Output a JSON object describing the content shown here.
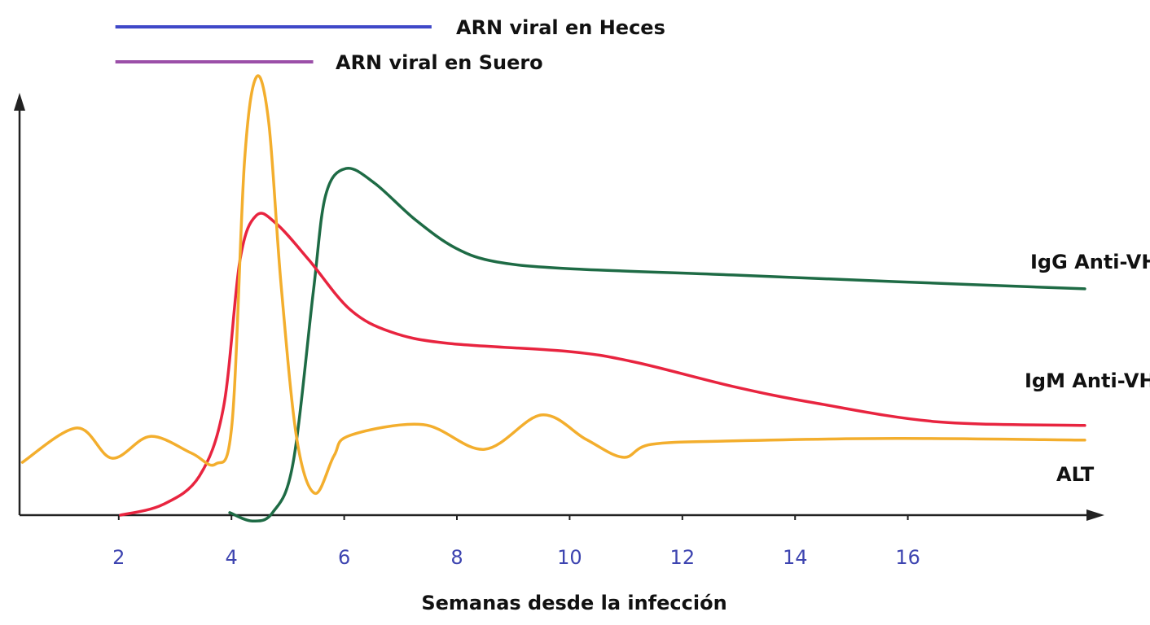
{
  "chart_data": {
    "type": "line",
    "xlabel": "Semanas desde la infección",
    "xlim": [
      0.24,
      19.43
    ],
    "ylim": [
      0,
      100
    ],
    "xticks": [
      2,
      4,
      6,
      8,
      10,
      12,
      14,
      16
    ],
    "tick_color": "#3d44b0",
    "ranges": [
      {
        "name": "ARN viral en Heces",
        "color": "#3f48c8",
        "start": 1.94,
        "end": 7.55
      },
      {
        "name": "ARN viral en Suero",
        "color": "#9b4fa8",
        "start": 1.94,
        "end": 5.45
      }
    ],
    "series": [
      {
        "name": "IgG Anti-VHE",
        "color": "#1e6b45",
        "x": [
          3.97,
          4.37,
          4.73,
          5.09,
          5.45,
          5.67,
          6.03,
          6.54,
          7.26,
          7.98,
          8.71,
          10.01,
          12.9,
          15.79,
          19.14
        ],
        "values": [
          0.6,
          -1.4,
          0.6,
          12.2,
          53.0,
          76.3,
          82.7,
          79.2,
          70.5,
          63.7,
          60.4,
          58.8,
          57.3,
          55.7,
          54.0
        ]
      },
      {
        "name": "IgM Anti-VHE",
        "color": "#e8243f",
        "x": [
          2.03,
          2.78,
          3.43,
          3.86,
          4.15,
          4.44,
          4.8,
          5.38,
          6.1,
          6.83,
          7.84,
          10.01,
          11.16,
          12.9,
          14.34,
          16.51,
          19.14
        ],
        "values": [
          0,
          2.5,
          9.3,
          25.8,
          60.8,
          71.5,
          69.5,
          60.8,
          49.1,
          43.7,
          41.0,
          39.0,
          36.5,
          30.7,
          26.8,
          22.3,
          21.4
        ]
      },
      {
        "name": "ALT",
        "color": "#f3ae2d",
        "x": [
          0.29,
          1.26,
          1.88,
          2.56,
          3.29,
          3.72,
          4.01,
          4.23,
          4.44,
          4.66,
          4.88,
          5.16,
          5.48,
          5.82,
          6.1,
          7.4,
          8.49,
          9.5,
          10.29,
          10.95,
          11.45,
          12.9,
          15.79,
          19.14
        ],
        "values": [
          12.6,
          20.8,
          13.6,
          18.8,
          14.8,
          12.2,
          21.9,
          84.1,
          104.5,
          93.8,
          55.0,
          18.1,
          5.2,
          14.2,
          19.0,
          21.6,
          15.7,
          23.9,
          18.1,
          13.8,
          16.9,
          17.7,
          18.3,
          17.9
        ]
      }
    ]
  }
}
